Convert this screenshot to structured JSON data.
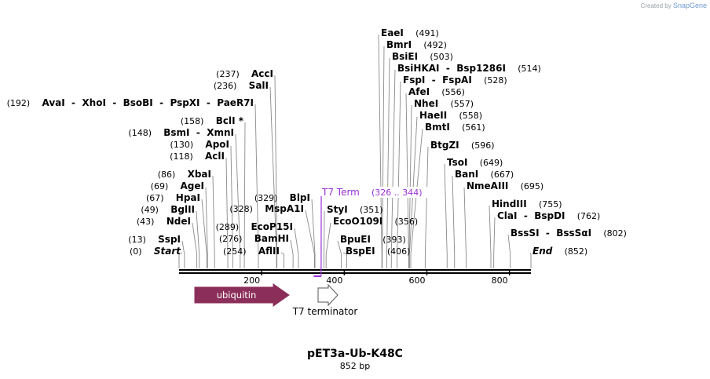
{
  "credit": {
    "prefix": "Created by",
    "brand": "SnapGene"
  },
  "plasmid": {
    "name": "pET3a-Ub-K48C",
    "length_label": "852 bp"
  },
  "ruler": {
    "ticks": [
      "200",
      "400",
      "600",
      "800"
    ]
  },
  "features": [
    {
      "label": "ubiquitin",
      "type": "cds",
      "color": "#8b2f5a"
    },
    {
      "label": "T7 terminator",
      "type": "terminator",
      "color": "#ffffff"
    }
  ],
  "primer": {
    "label": "T7 Term",
    "range": "(326 .. 344)",
    "color": "#9b30d9"
  },
  "sites": [
    {
      "names": [
        "Start"
      ],
      "pos": "(0)",
      "italic": true
    },
    {
      "names": [
        "SspI"
      ],
      "pos": "(13)"
    },
    {
      "names": [
        "NdeI"
      ],
      "pos": "(43)"
    },
    {
      "names": [
        "BglII"
      ],
      "pos": "(49)"
    },
    {
      "names": [
        "HpaI"
      ],
      "pos": "(67)"
    },
    {
      "names": [
        "AgeI"
      ],
      "pos": "(69)"
    },
    {
      "names": [
        "XbaI"
      ],
      "pos": "(86)"
    },
    {
      "names": [
        "AclI"
      ],
      "pos": "(118)"
    },
    {
      "names": [
        "ApoI"
      ],
      "pos": "(130)"
    },
    {
      "names": [
        "BsmI",
        "XmnI"
      ],
      "pos": "(148)"
    },
    {
      "names": [
        "BclI *"
      ],
      "pos": "(158)"
    },
    {
      "names": [
        "AvaI",
        "XhoI",
        "BsoBI",
        "PspXI",
        "PaeR7I"
      ],
      "pos": "(192)"
    },
    {
      "names": [
        "SalI"
      ],
      "pos": "(236)"
    },
    {
      "names": [
        "AccI"
      ],
      "pos": "(237)"
    },
    {
      "names": [
        "AflII"
      ],
      "pos": "(254)"
    },
    {
      "names": [
        "BamHI"
      ],
      "pos": "(276)"
    },
    {
      "names": [
        "EcoP15I"
      ],
      "pos": "(289)"
    },
    {
      "names": [
        "MspA1I"
      ],
      "pos": "(328)"
    },
    {
      "names": [
        "BlpI"
      ],
      "pos": "(329)"
    },
    {
      "names": [
        "StyI"
      ],
      "pos": "(351)"
    },
    {
      "names": [
        "EcoO109I"
      ],
      "pos": "(356)"
    },
    {
      "names": [
        "BpuEI"
      ],
      "pos": "(393)"
    },
    {
      "names": [
        "BspEI"
      ],
      "pos": "(406)"
    },
    {
      "names": [
        "EaeI"
      ],
      "pos": "(491)"
    },
    {
      "names": [
        "BmrI"
      ],
      "pos": "(492)"
    },
    {
      "names": [
        "BsiEI"
      ],
      "pos": "(503)"
    },
    {
      "names": [
        "BsiHKAI",
        "Bsp1286I"
      ],
      "pos": "(514)"
    },
    {
      "names": [
        "FspI",
        "FspAI"
      ],
      "pos": "(528)"
    },
    {
      "names": [
        "AfeI"
      ],
      "pos": "(556)"
    },
    {
      "names": [
        "NheI"
      ],
      "pos": "(557)"
    },
    {
      "names": [
        "HaeII"
      ],
      "pos": "(558)"
    },
    {
      "names": [
        "BmtI"
      ],
      "pos": "(561)"
    },
    {
      "names": [
        "BtgZI"
      ],
      "pos": "(596)"
    },
    {
      "names": [
        "TsoI"
      ],
      "pos": "(649)"
    },
    {
      "names": [
        "BanI"
      ],
      "pos": "(667)"
    },
    {
      "names": [
        "NmeAIII"
      ],
      "pos": "(695)"
    },
    {
      "names": [
        "HindIII"
      ],
      "pos": "(755)"
    },
    {
      "names": [
        "ClaI",
        "BspDI"
      ],
      "pos": "(762)"
    },
    {
      "names": [
        "BssSI",
        "BssSαI"
      ],
      "pos": "(802)"
    },
    {
      "names": [
        "End"
      ],
      "pos": "(852)",
      "italic": true
    }
  ]
}
